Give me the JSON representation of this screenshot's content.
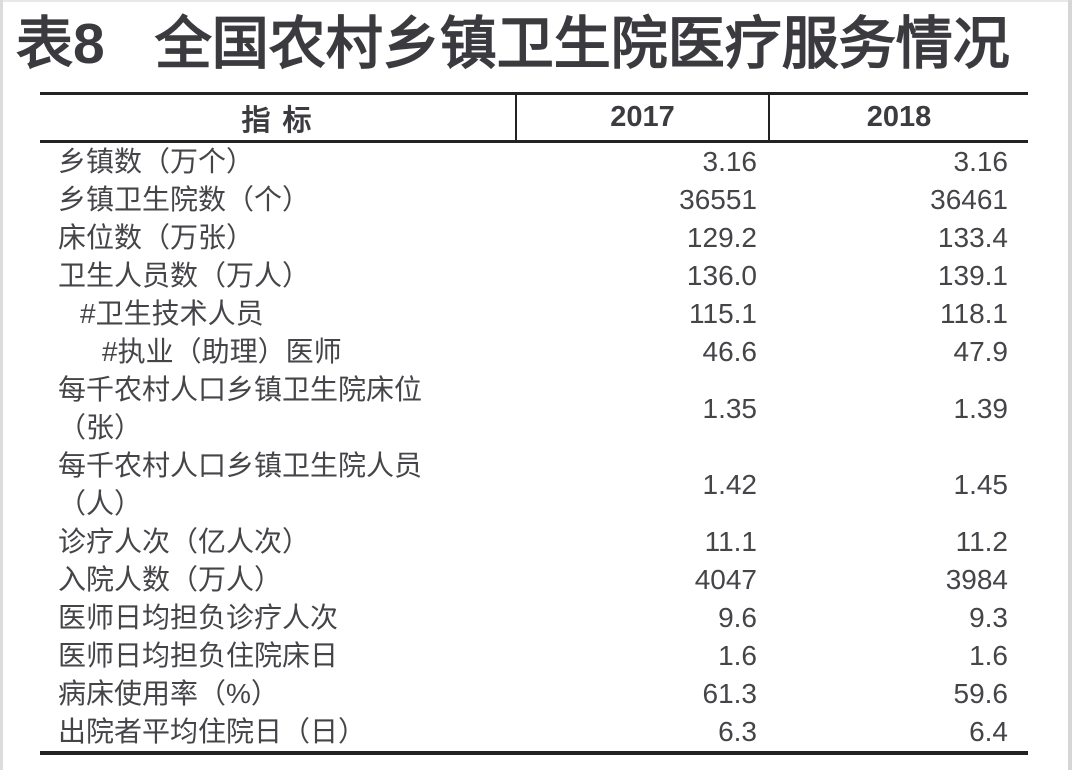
{
  "title": {
    "tag": "表8",
    "text": "全国农村乡镇卫生院医疗服务情况"
  },
  "table": {
    "headers": {
      "indicator": "指 标",
      "y2017": "2017",
      "y2018": "2018"
    },
    "rows": [
      {
        "label": "乡镇数（万个）",
        "v2017": "3.16",
        "v2018": "3.16"
      },
      {
        "label": "乡镇卫生院数（个）",
        "v2017": "36551",
        "v2018": "36461"
      },
      {
        "label": "床位数（万张）",
        "v2017": "129.2",
        "v2018": "133.4"
      },
      {
        "label": "卫生人员数（万人）",
        "v2017": "136.0",
        "v2018": "139.1"
      },
      {
        "label": "#卫生技术人员",
        "v2017": "115.1",
        "v2018": "118.1"
      },
      {
        "label": "#执业（助理）医师",
        "v2017": "46.6",
        "v2018": "47.9"
      },
      {
        "label": "每千农村人口乡镇卫生院床位",
        "label2": "（张）",
        "v2017": "1.35",
        "v2018": "1.39"
      },
      {
        "label": "每千农村人口乡镇卫生院人员",
        "label2": "（人）",
        "v2017": "1.42",
        "v2018": "1.45"
      },
      {
        "label": "诊疗人次（亿人次）",
        "v2017": "11.1",
        "v2018": "11.2"
      },
      {
        "label": "入院人数（万人）",
        "v2017": "4047",
        "v2018": "3984"
      },
      {
        "label": "医师日均担负诊疗人次",
        "v2017": "9.6",
        "v2018": "9.3"
      },
      {
        "label": "医师日均担负住院床日",
        "v2017": "1.6",
        "v2018": "1.6"
      },
      {
        "label": "病床使用率（%）",
        "v2017": "61.3",
        "v2018": "59.6"
      },
      {
        "label": "出院者平均住院日（日）",
        "v2017": "6.3",
        "v2018": "6.4"
      }
    ]
  },
  "colors": {
    "background": "#ffffff",
    "title_text": "#3b3b3f",
    "body_text": "#454549",
    "header_text": "#3c3c40",
    "rule_line": "#232323",
    "scan_edge": "#dcdcdc"
  },
  "chart_data": {
    "type": "table",
    "title": "表8 全国农村乡镇卫生院医疗服务情况",
    "columns": [
      "指标",
      "2017",
      "2018"
    ],
    "rows": [
      [
        "乡镇数（万个）",
        "3.16",
        "3.16"
      ],
      [
        "乡镇卫生院数（个）",
        "36551",
        "36461"
      ],
      [
        "床位数（万张）",
        "129.2",
        "133.4"
      ],
      [
        "卫生人员数（万人）",
        "136.0",
        "139.1"
      ],
      [
        "#卫生技术人员",
        "115.1",
        "118.1"
      ],
      [
        "#执业（助理）医师",
        "46.6",
        "47.9"
      ],
      [
        "每千农村人口乡镇卫生院床位（张）",
        "1.35",
        "1.39"
      ],
      [
        "每千农村人口乡镇卫生院人员（人）",
        "1.42",
        "1.45"
      ],
      [
        "诊疗人次（亿人次）",
        "11.1",
        "11.2"
      ],
      [
        "入院人数（万人）",
        "4047",
        "3984"
      ],
      [
        "医师日均担负诊疗人次",
        "9.6",
        "9.3"
      ],
      [
        "医师日均担负住院床日",
        "1.6",
        "1.6"
      ],
      [
        "病床使用率（%）",
        "61.3",
        "59.6"
      ],
      [
        "出院者平均住院日（日）",
        "6.3",
        "6.4"
      ]
    ]
  }
}
